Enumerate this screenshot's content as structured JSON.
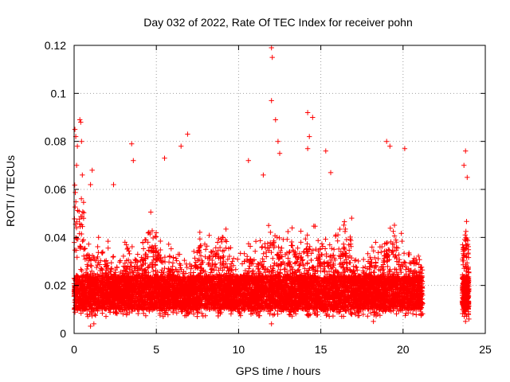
{
  "chart_data": {
    "type": "scatter",
    "title": "Day 032 of 2022, Rate Of TEC Index for receiver pohn",
    "xlabel": "GPS time / hours",
    "ylabel": "ROTI / TECUs",
    "xlim": [
      0,
      25
    ],
    "ylim": [
      0,
      0.12
    ],
    "xticks": [
      "0",
      "5",
      "10",
      "15",
      "20",
      "25"
    ],
    "yticks": [
      "0",
      "0.02",
      "0.04",
      "0.06",
      "0.08",
      "0.1",
      "0.12"
    ],
    "grid": true,
    "marker": "plus",
    "color": "#ff0000",
    "data_coverage_hours": [
      [
        0,
        21.2
      ],
      [
        23.6,
        24
      ]
    ],
    "series": [
      {
        "values": [
          [
            0.05,
            0.085
          ],
          [
            0.1,
            0.082
          ],
          [
            0.15,
            0.07
          ],
          [
            0.2,
            0.078
          ],
          [
            0.35,
            0.089
          ],
          [
            0.4,
            0.088
          ],
          [
            0.45,
            0.08
          ],
          [
            0.5,
            0.066
          ],
          [
            1.0,
            0.062
          ],
          [
            1.1,
            0.068
          ],
          [
            2.4,
            0.062
          ],
          [
            3.5,
            0.079
          ],
          [
            3.6,
            0.072
          ],
          [
            5.5,
            0.073
          ],
          [
            6.5,
            0.078
          ],
          [
            6.9,
            0.083
          ],
          [
            10.6,
            0.072
          ],
          [
            11.5,
            0.066
          ],
          [
            12.0,
            0.119
          ],
          [
            12.05,
            0.115
          ],
          [
            12.0,
            0.097
          ],
          [
            12.25,
            0.089
          ],
          [
            12.4,
            0.08
          ],
          [
            12.5,
            0.075
          ],
          [
            14.2,
            0.092
          ],
          [
            14.5,
            0.09
          ],
          [
            14.3,
            0.082
          ],
          [
            14.2,
            0.077
          ],
          [
            15.3,
            0.076
          ],
          [
            15.6,
            0.067
          ],
          [
            19.0,
            0.08
          ],
          [
            19.2,
            0.078
          ],
          [
            20.1,
            0.077
          ],
          [
            23.8,
            0.076
          ],
          [
            23.7,
            0.07
          ],
          [
            23.9,
            0.065
          ],
          [
            1.0,
            0.003
          ],
          [
            1.2,
            0.004
          ],
          [
            12.0,
            0.004
          ],
          [
            18.2,
            0.005
          ],
          [
            23.8,
            0.005
          ],
          [
            24.0,
            0.006
          ]
        ]
      }
    ]
  }
}
